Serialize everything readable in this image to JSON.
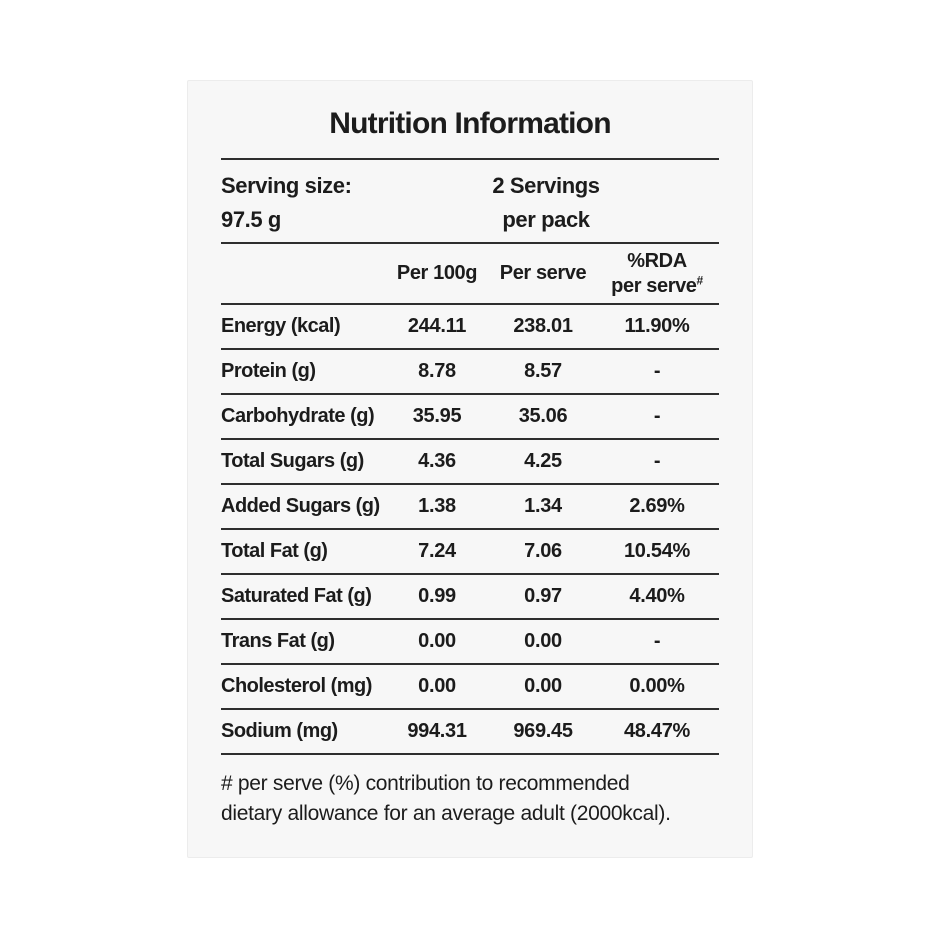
{
  "label": {
    "title": "Nutrition Information",
    "serving": {
      "size_label": "Serving size:",
      "size_value": "97.5 g",
      "servings_line1": "2 Servings",
      "servings_line2": "per pack"
    },
    "table": {
      "columns": {
        "per_100g": "Per 100g",
        "per_serve": "Per serve",
        "rda_line1": "%RDA",
        "rda_line2": "per serve",
        "rda_sup": "#"
      },
      "rows": [
        {
          "label": "Energy (kcal)",
          "per_100g": "244.11",
          "per_serve": "238.01",
          "rda": "11.90%"
        },
        {
          "label": "Protein (g)",
          "per_100g": "8.78",
          "per_serve": "8.57",
          "rda": "-"
        },
        {
          "label": "Carbohydrate (g)",
          "per_100g": "35.95",
          "per_serve": "35.06",
          "rda": "-"
        },
        {
          "label": "Total Sugars (g)",
          "per_100g": "4.36",
          "per_serve": "4.25",
          "rda": "-"
        },
        {
          "label": "Added Sugars (g)",
          "per_100g": "1.38",
          "per_serve": "1.34",
          "rda": "2.69%"
        },
        {
          "label": "Total Fat (g)",
          "per_100g": "7.24",
          "per_serve": "7.06",
          "rda": "10.54%"
        },
        {
          "label": "Saturated Fat (g)",
          "per_100g": "0.99",
          "per_serve": "0.97",
          "rda": "4.40%"
        },
        {
          "label": "Trans Fat (g)",
          "per_100g": "0.00",
          "per_serve": "0.00",
          "rda": "-"
        },
        {
          "label": "Cholesterol (mg)",
          "per_100g": "0.00",
          "per_serve": "0.00",
          "rda": "0.00%"
        },
        {
          "label": "Sodium (mg)",
          "per_100g": "994.31",
          "per_serve": "969.45",
          "rda": "48.47%"
        }
      ]
    },
    "footnote_line1": "# per serve (%) contribution to recommended",
    "footnote_line2": "dietary allowance for an average adult (2000kcal).",
    "colors": {
      "card_background": "#f7f7f7",
      "text": "#1c1c1c",
      "rule": "#2e2e2e"
    }
  }
}
